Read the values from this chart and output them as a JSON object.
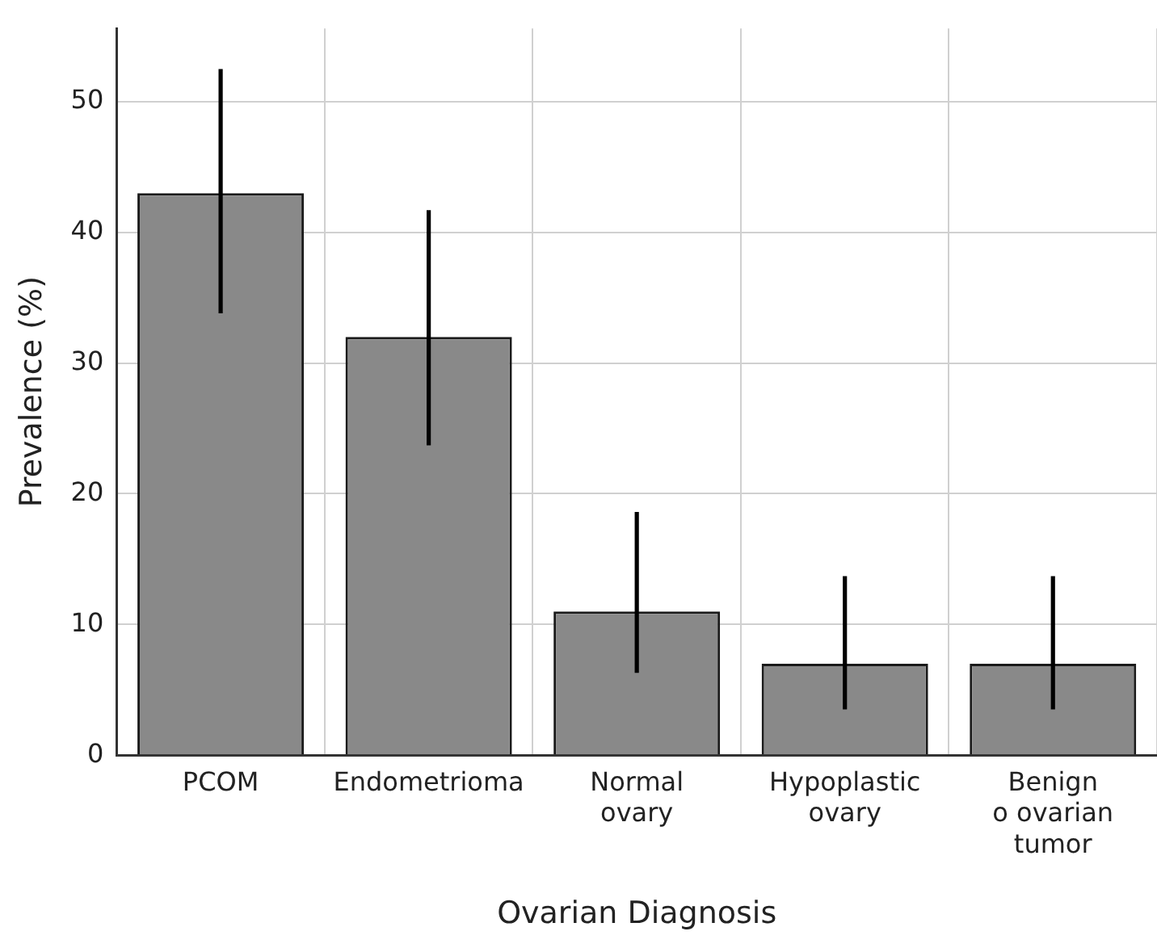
{
  "chart_data": {
    "type": "bar",
    "xlabel": "Ovarian Diagnosis",
    "ylabel": "Prevalence (%)",
    "categories": [
      "PCOM",
      "Endometrioma",
      "Normal\novary",
      "Hypoplastic\novary",
      "Benign\no ovarian\ntumor"
    ],
    "values": [
      43,
      32,
      11,
      7,
      7
    ],
    "color": "#898989",
    "errors": [
      [
        33.8,
        52.5
      ],
      [
        23.7,
        41.7
      ],
      [
        6.3,
        18.6
      ],
      [
        3.5,
        13.7
      ],
      [
        3.5,
        13.7
      ]
    ],
    "ylim": [
      0,
      55.6
    ],
    "yticks": [
      0,
      10,
      20,
      30,
      40,
      50
    ],
    "grid": true
  }
}
